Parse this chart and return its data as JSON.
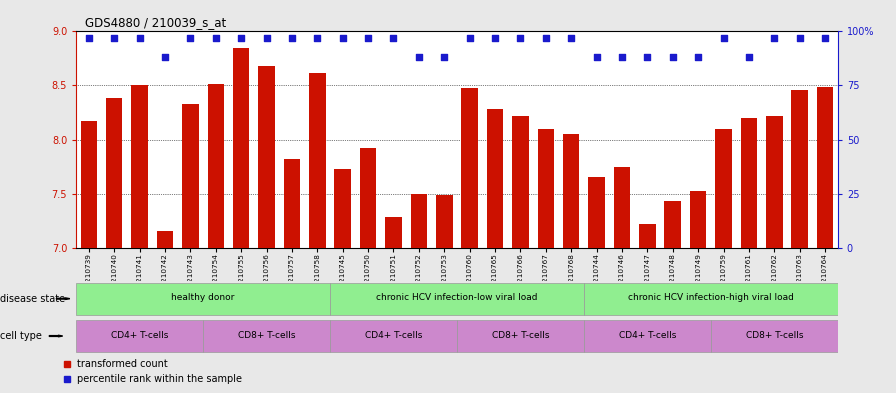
{
  "title": "GDS4880 / 210039_s_at",
  "samples": [
    "GSM1210739",
    "GSM1210740",
    "GSM1210741",
    "GSM1210742",
    "GSM1210743",
    "GSM1210754",
    "GSM1210755",
    "GSM1210756",
    "GSM1210757",
    "GSM1210758",
    "GSM1210745",
    "GSM1210750",
    "GSM1210751",
    "GSM1210752",
    "GSM1210753",
    "GSM1210760",
    "GSM1210765",
    "GSM1210766",
    "GSM1210767",
    "GSM1210768",
    "GSM1210744",
    "GSM1210746",
    "GSM1210747",
    "GSM1210748",
    "GSM1210749",
    "GSM1210759",
    "GSM1210761",
    "GSM1210762",
    "GSM1210763",
    "GSM1210764"
  ],
  "bar_values": [
    8.17,
    8.38,
    8.5,
    7.15,
    8.33,
    8.51,
    8.85,
    8.68,
    7.82,
    8.62,
    7.73,
    7.92,
    7.28,
    7.5,
    7.49,
    8.48,
    8.28,
    8.22,
    8.1,
    8.05,
    7.65,
    7.75,
    7.22,
    7.43,
    7.52,
    8.1,
    8.2,
    8.22,
    8.46,
    8.49
  ],
  "percentile_values": [
    97,
    97,
    97,
    88,
    97,
    97,
    97,
    97,
    97,
    97,
    97,
    97,
    97,
    88,
    88,
    97,
    97,
    97,
    97,
    97,
    88,
    88,
    88,
    88,
    88,
    97,
    88,
    97,
    97,
    97
  ],
  "bar_color": "#CC1100",
  "dot_color": "#1A1ACC",
  "ylim_left": [
    7.0,
    9.0
  ],
  "ylim_right": [
    0,
    100
  ],
  "yticks_left": [
    7.0,
    7.5,
    8.0,
    8.5,
    9.0
  ],
  "yticks_right": [
    0,
    25,
    50,
    75,
    100
  ],
  "grid_values": [
    7.5,
    8.0,
    8.5
  ],
  "disease_state_label": "disease state",
  "cell_type_label": "cell type",
  "legend_bar_label": "transformed count",
  "legend_dot_label": "percentile rank within the sample",
  "bg_color": "#e8e8e8",
  "plot_bg_color": "#ffffff",
  "disease_color": "#90EE90",
  "cell_cd4_color": "#CC88CC",
  "cell_cd8_color": "#CC88CC"
}
